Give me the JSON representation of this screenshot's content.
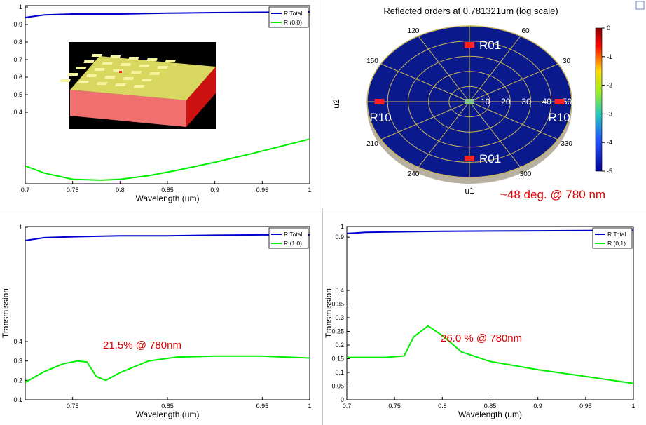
{
  "colors": {
    "total": "#0000cc",
    "order": "#00ee00",
    "annotation": "#dd0000",
    "polar_fill": "#0a1a8c",
    "polar_grid": "#c8b45a",
    "axis": "#000000"
  },
  "chart_data": [
    {
      "id": "top_left",
      "type": "line",
      "title": "",
      "xlabel": "Wavelength (um)",
      "ylabel": "",
      "xlim": [
        0.7,
        1.0
      ],
      "ylim": [
        0.0,
        1.0
      ],
      "x_ticks": [
        "0.7",
        "0.75",
        "0.8",
        "0.85",
        "0.9",
        "0.95",
        "1"
      ],
      "y_ticks": [
        "0.4",
        "0.5",
        "0.6",
        "0.7",
        "0.8",
        "0.9",
        "1"
      ],
      "legend": [
        "R Total",
        "R (0,0)"
      ],
      "series": [
        {
          "name": "R Total",
          "x": [
            0.7,
            0.72,
            0.75,
            0.8,
            0.85,
            0.9,
            0.95,
            1.0
          ],
          "y": [
            0.94,
            0.955,
            0.96,
            0.96,
            0.965,
            0.968,
            0.97,
            0.972
          ]
        },
        {
          "name": "R (0,0)",
          "x": [
            0.7,
            0.72,
            0.75,
            0.78,
            0.8,
            0.83,
            0.86,
            0.9,
            0.94,
            0.97,
            1.0
          ],
          "y": [
            0.1,
            0.06,
            0.025,
            0.02,
            0.025,
            0.045,
            0.075,
            0.12,
            0.17,
            0.21,
            0.25
          ]
        }
      ]
    },
    {
      "id": "polar",
      "type": "heatmap",
      "title": "Reflected orders at 0.781321um (log scale)",
      "xlabel": "u1",
      "ylabel": "u2",
      "angle_labels": [
        "120",
        "60",
        "150",
        "30",
        "210",
        "330",
        "240",
        "300"
      ],
      "radius_labels": [
        "10",
        "20",
        "30",
        "40",
        "50"
      ],
      "colorbar_ticks": [
        "0",
        "-1",
        "-2",
        "-3",
        "-4",
        "-5"
      ],
      "colorbar_range": [
        -5,
        0
      ],
      "orders": [
        "R01",
        "R10",
        "R10",
        "R01"
      ],
      "annotation": "~48 deg. @ 780 nm"
    },
    {
      "id": "bottom_left",
      "type": "line",
      "title": "",
      "xlabel": "Wavelength (um)",
      "ylabel": "Transmission",
      "xlim": [
        0.7,
        1.0
      ],
      "ylim": [
        0.1,
        1.0
      ],
      "x_ticks": [
        "0.75",
        "0.85",
        "0.95",
        "1"
      ],
      "y_ticks": [
        "0.1",
        "0.2",
        "0.3",
        "0.4",
        "1"
      ],
      "legend": [
        "R Total",
        "R (1,0)"
      ],
      "annotation": "21.5% @ 780nm",
      "series": [
        {
          "name": "R Total",
          "x": [
            0.7,
            0.72,
            0.75,
            0.8,
            0.85,
            0.9,
            0.95,
            1.0
          ],
          "y": [
            0.93,
            0.945,
            0.95,
            0.955,
            0.955,
            0.958,
            0.96,
            0.96
          ]
        },
        {
          "name": "R (1,0)",
          "x": [
            0.7,
            0.72,
            0.74,
            0.755,
            0.765,
            0.775,
            0.785,
            0.8,
            0.83,
            0.86,
            0.9,
            0.95,
            1.0
          ],
          "y": [
            0.19,
            0.245,
            0.285,
            0.3,
            0.295,
            0.22,
            0.2,
            0.24,
            0.3,
            0.32,
            0.325,
            0.325,
            0.315
          ]
        }
      ]
    },
    {
      "id": "bottom_right",
      "type": "line",
      "title": "",
      "xlabel": "Wavelength (um)",
      "ylabel": "Transmission",
      "xlim": [
        0.7,
        1.0
      ],
      "ylim": [
        0.0,
        1.0
      ],
      "x_ticks": [
        "0.7",
        "0.75",
        "0.8",
        "0.85",
        "0.9",
        "0.95",
        "1"
      ],
      "y_ticks": [
        "0",
        "0.05",
        "0.1",
        "0.15",
        "0.2",
        "0.25",
        "0.3",
        "0.35",
        "0.4",
        "0.9",
        "1"
      ],
      "legend": [
        "R Total",
        "R (0,1)"
      ],
      "annotation": "26.0 % @ 780nm",
      "series": [
        {
          "name": "R Total",
          "x": [
            0.7,
            0.72,
            0.75,
            0.8,
            0.85,
            0.9,
            0.95,
            1.0
          ],
          "y": [
            0.935,
            0.945,
            0.95,
            0.955,
            0.958,
            0.96,
            0.962,
            0.965
          ]
        },
        {
          "name": "R (0,1)",
          "x": [
            0.7,
            0.72,
            0.74,
            0.76,
            0.77,
            0.785,
            0.8,
            0.82,
            0.85,
            0.9,
            0.95,
            1.0
          ],
          "y": [
            0.155,
            0.155,
            0.155,
            0.16,
            0.23,
            0.27,
            0.235,
            0.175,
            0.14,
            0.11,
            0.085,
            0.06
          ]
        }
      ]
    }
  ]
}
